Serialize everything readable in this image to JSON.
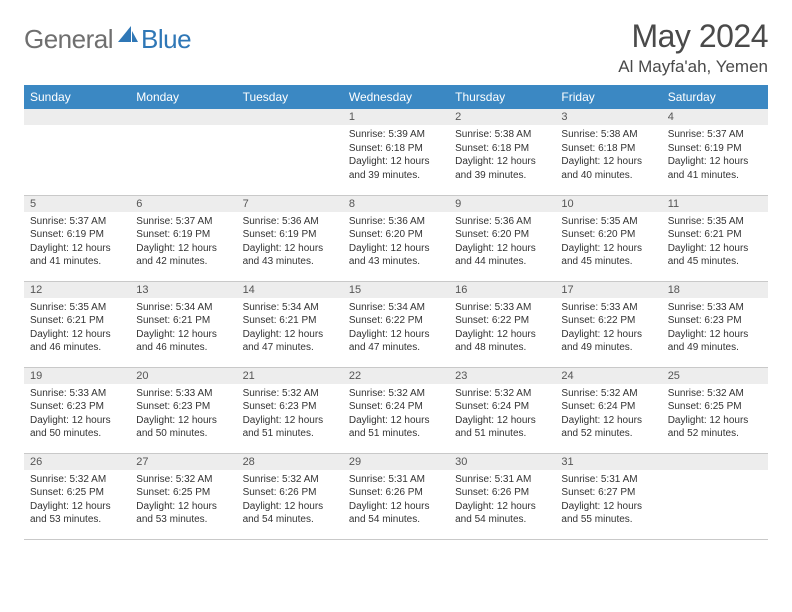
{
  "brand": {
    "part1": "General",
    "part2": "Blue"
  },
  "title": {
    "month": "May 2024",
    "location": "Al Mayfa'ah, Yemen"
  },
  "colors": {
    "header_bg": "#3b88c3",
    "header_fg": "#ffffff",
    "daynum_bg": "#ededed",
    "border": "#c9c9c9",
    "brand_gray": "#6f6f6f",
    "brand_blue": "#2f77b6"
  },
  "weekdays": [
    "Sunday",
    "Monday",
    "Tuesday",
    "Wednesday",
    "Thursday",
    "Friday",
    "Saturday"
  ],
  "weeks": [
    [
      {
        "n": "",
        "sr": "",
        "ss": "",
        "dl": ""
      },
      {
        "n": "",
        "sr": "",
        "ss": "",
        "dl": ""
      },
      {
        "n": "",
        "sr": "",
        "ss": "",
        "dl": ""
      },
      {
        "n": "1",
        "sr": "5:39 AM",
        "ss": "6:18 PM",
        "dl": "12 hours and 39 minutes."
      },
      {
        "n": "2",
        "sr": "5:38 AM",
        "ss": "6:18 PM",
        "dl": "12 hours and 39 minutes."
      },
      {
        "n": "3",
        "sr": "5:38 AM",
        "ss": "6:18 PM",
        "dl": "12 hours and 40 minutes."
      },
      {
        "n": "4",
        "sr": "5:37 AM",
        "ss": "6:19 PM",
        "dl": "12 hours and 41 minutes."
      }
    ],
    [
      {
        "n": "5",
        "sr": "5:37 AM",
        "ss": "6:19 PM",
        "dl": "12 hours and 41 minutes."
      },
      {
        "n": "6",
        "sr": "5:37 AM",
        "ss": "6:19 PM",
        "dl": "12 hours and 42 minutes."
      },
      {
        "n": "7",
        "sr": "5:36 AM",
        "ss": "6:19 PM",
        "dl": "12 hours and 43 minutes."
      },
      {
        "n": "8",
        "sr": "5:36 AM",
        "ss": "6:20 PM",
        "dl": "12 hours and 43 minutes."
      },
      {
        "n": "9",
        "sr": "5:36 AM",
        "ss": "6:20 PM",
        "dl": "12 hours and 44 minutes."
      },
      {
        "n": "10",
        "sr": "5:35 AM",
        "ss": "6:20 PM",
        "dl": "12 hours and 45 minutes."
      },
      {
        "n": "11",
        "sr": "5:35 AM",
        "ss": "6:21 PM",
        "dl": "12 hours and 45 minutes."
      }
    ],
    [
      {
        "n": "12",
        "sr": "5:35 AM",
        "ss": "6:21 PM",
        "dl": "12 hours and 46 minutes."
      },
      {
        "n": "13",
        "sr": "5:34 AM",
        "ss": "6:21 PM",
        "dl": "12 hours and 46 minutes."
      },
      {
        "n": "14",
        "sr": "5:34 AM",
        "ss": "6:21 PM",
        "dl": "12 hours and 47 minutes."
      },
      {
        "n": "15",
        "sr": "5:34 AM",
        "ss": "6:22 PM",
        "dl": "12 hours and 47 minutes."
      },
      {
        "n": "16",
        "sr": "5:33 AM",
        "ss": "6:22 PM",
        "dl": "12 hours and 48 minutes."
      },
      {
        "n": "17",
        "sr": "5:33 AM",
        "ss": "6:22 PM",
        "dl": "12 hours and 49 minutes."
      },
      {
        "n": "18",
        "sr": "5:33 AM",
        "ss": "6:23 PM",
        "dl": "12 hours and 49 minutes."
      }
    ],
    [
      {
        "n": "19",
        "sr": "5:33 AM",
        "ss": "6:23 PM",
        "dl": "12 hours and 50 minutes."
      },
      {
        "n": "20",
        "sr": "5:33 AM",
        "ss": "6:23 PM",
        "dl": "12 hours and 50 minutes."
      },
      {
        "n": "21",
        "sr": "5:32 AM",
        "ss": "6:23 PM",
        "dl": "12 hours and 51 minutes."
      },
      {
        "n": "22",
        "sr": "5:32 AM",
        "ss": "6:24 PM",
        "dl": "12 hours and 51 minutes."
      },
      {
        "n": "23",
        "sr": "5:32 AM",
        "ss": "6:24 PM",
        "dl": "12 hours and 51 minutes."
      },
      {
        "n": "24",
        "sr": "5:32 AM",
        "ss": "6:24 PM",
        "dl": "12 hours and 52 minutes."
      },
      {
        "n": "25",
        "sr": "5:32 AM",
        "ss": "6:25 PM",
        "dl": "12 hours and 52 minutes."
      }
    ],
    [
      {
        "n": "26",
        "sr": "5:32 AM",
        "ss": "6:25 PM",
        "dl": "12 hours and 53 minutes."
      },
      {
        "n": "27",
        "sr": "5:32 AM",
        "ss": "6:25 PM",
        "dl": "12 hours and 53 minutes."
      },
      {
        "n": "28",
        "sr": "5:32 AM",
        "ss": "6:26 PM",
        "dl": "12 hours and 54 minutes."
      },
      {
        "n": "29",
        "sr": "5:31 AM",
        "ss": "6:26 PM",
        "dl": "12 hours and 54 minutes."
      },
      {
        "n": "30",
        "sr": "5:31 AM",
        "ss": "6:26 PM",
        "dl": "12 hours and 54 minutes."
      },
      {
        "n": "31",
        "sr": "5:31 AM",
        "ss": "6:27 PM",
        "dl": "12 hours and 55 minutes."
      },
      {
        "n": "",
        "sr": "",
        "ss": "",
        "dl": ""
      }
    ]
  ],
  "labels": {
    "sunrise": "Sunrise:",
    "sunset": "Sunset:",
    "daylight": "Daylight:"
  }
}
